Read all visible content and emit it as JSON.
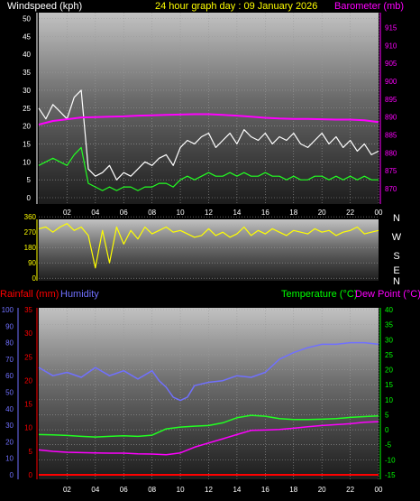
{
  "colors": {
    "wind_label": "#ffffff",
    "title": "#ffff00",
    "barometer": "#ff00ff",
    "rainfall": "#ff0000",
    "humidity": "#7070ff",
    "temperature": "#00ff00",
    "dew_point": "#ff00ff",
    "wind_dir": "#ffff00",
    "rain_ticks": "#ff0000",
    "hum_ticks": "#7070ff"
  },
  "chart_data": [
    {
      "type": "line",
      "title": "24 hour graph day : 09 January 2026",
      "left_label": "Windspeed (kph)",
      "right_label": "Barometer (mb)",
      "x_ticks": [
        "02",
        "04",
        "06",
        "08",
        "10",
        "12",
        "14",
        "16",
        "18",
        "20",
        "22",
        "00"
      ],
      "x_range_hours": [
        0,
        24
      ],
      "y_left": {
        "range": [
          0,
          50
        ],
        "ticks": [
          "0",
          "5",
          "10",
          "15",
          "20",
          "25",
          "30",
          "35",
          "40",
          "45",
          "50"
        ]
      },
      "y_right": {
        "range": [
          867.5,
          917.5
        ],
        "ticks": [
          "870",
          "875",
          "880",
          "885",
          "890",
          "895",
          "900",
          "905",
          "910",
          "915"
        ]
      },
      "series": [
        {
          "key": "gust",
          "color": "#ffffff",
          "x": [
            0,
            0.5,
            1,
            1.5,
            2,
            2.5,
            3,
            3.5,
            4,
            4.5,
            5,
            5.5,
            6,
            6.5,
            7,
            7.5,
            8,
            8.5,
            9,
            9.5,
            10,
            10.5,
            11,
            11.5,
            12,
            12.5,
            13,
            13.5,
            14,
            14.5,
            15,
            15.5,
            16,
            16.5,
            17,
            17.5,
            18,
            18.5,
            19,
            19.5,
            20,
            20.5,
            21,
            21.5,
            22,
            22.5,
            23,
            23.5,
            24
          ],
          "y": [
            25,
            22,
            26,
            24,
            22,
            28,
            30,
            8,
            6,
            7,
            9,
            5,
            7,
            6,
            8,
            10,
            9,
            11,
            12,
            9,
            14,
            16,
            15,
            17,
            18,
            14,
            16,
            18,
            15,
            19,
            17,
            16,
            18,
            15,
            17,
            16,
            18,
            15,
            14,
            16,
            18,
            15,
            17,
            14,
            16,
            13,
            15,
            12,
            13
          ]
        },
        {
          "key": "avg",
          "color": "#22ff22",
          "x": [
            0,
            0.5,
            1,
            1.5,
            2,
            2.5,
            3,
            3.5,
            4,
            4.5,
            5,
            5.5,
            6,
            6.5,
            7,
            7.5,
            8,
            8.5,
            9,
            9.5,
            10,
            10.5,
            11,
            11.5,
            12,
            12.5,
            13,
            13.5,
            14,
            14.5,
            15,
            15.5,
            16,
            16.5,
            17,
            17.5,
            18,
            18.5,
            19,
            19.5,
            20,
            20.5,
            21,
            21.5,
            22,
            22.5,
            23,
            23.5,
            24
          ],
          "y": [
            9,
            10,
            11,
            10,
            9,
            12,
            14,
            4,
            3,
            2,
            3,
            2,
            3,
            3,
            2,
            3,
            3,
            4,
            4,
            3,
            5,
            6,
            5,
            6,
            7,
            6,
            6,
            7,
            6,
            7,
            6,
            6,
            7,
            6,
            6,
            5,
            6,
            5,
            5,
            6,
            6,
            5,
            6,
            5,
            6,
            5,
            6,
            5,
            5
          ]
        },
        {
          "key": "barometer",
          "color": "#ff00ff",
          "axis": "right",
          "x": [
            0,
            1,
            2,
            3,
            4,
            5,
            6,
            7,
            8,
            9,
            10,
            11,
            12,
            13,
            14,
            15,
            16,
            17,
            18,
            19,
            20,
            21,
            22,
            23,
            24
          ],
          "y": [
            887.9,
            888.9,
            889.4,
            889.9,
            890.0,
            890.1,
            890.2,
            890.4,
            890.5,
            890.6,
            890.7,
            890.8,
            890.8,
            890.6,
            890.4,
            890.1,
            889.8,
            889.6,
            889.5,
            889.5,
            889.4,
            889.3,
            889.3,
            889.1,
            888.6
          ]
        }
      ]
    },
    {
      "type": "line",
      "x_range_hours": [
        0,
        24
      ],
      "y_range": [
        -15,
        345
      ],
      "y_ticks": [
        "0",
        "90",
        "180",
        "270",
        "360"
      ],
      "compass_labels": [
        "N",
        "W",
        "S",
        "E",
        "N"
      ],
      "series": [
        {
          "key": "wind_direction",
          "color": "#ffff00",
          "x": [
            0,
            0.5,
            1,
            1.5,
            2,
            2.5,
            3,
            3.5,
            4,
            4.5,
            5,
            5.5,
            6,
            6.5,
            7,
            7.5,
            8,
            8.5,
            9,
            9.5,
            10,
            10.5,
            11,
            11.5,
            12,
            12.5,
            13,
            13.5,
            14,
            14.5,
            15,
            15.5,
            16,
            16.5,
            17,
            17.5,
            18,
            18.5,
            19,
            19.5,
            20,
            20.5,
            21,
            21.5,
            22,
            22.5,
            23,
            23.5,
            24
          ],
          "y": [
            290,
            300,
            270,
            300,
            320,
            280,
            300,
            250,
            60,
            280,
            90,
            300,
            200,
            280,
            230,
            300,
            260,
            280,
            300,
            270,
            280,
            260,
            240,
            250,
            290,
            250,
            270,
            240,
            260,
            300,
            250,
            280,
            260,
            290,
            270,
            250,
            280,
            270,
            260,
            290,
            270,
            280,
            250,
            270,
            280,
            300,
            260,
            270,
            280
          ]
        }
      ]
    },
    {
      "type": "line",
      "left_labels": [
        "Rainfall (mm)",
        "Humidity"
      ],
      "right_labels": [
        "Temperature (°C)",
        "Dew Point (°C)"
      ],
      "x_ticks": [
        "02",
        "04",
        "06",
        "08",
        "10",
        "12",
        "14",
        "16",
        "18",
        "20",
        "22",
        "00"
      ],
      "x_range_hours": [
        0,
        24
      ],
      "rain_axis": {
        "range": [
          0,
          35
        ],
        "ticks": [
          "0",
          "5",
          "10",
          "15",
          "20",
          "25",
          "30",
          "35"
        ]
      },
      "humidity_axis": {
        "range": [
          0,
          100
        ],
        "ticks": [
          "0",
          "10",
          "20",
          "30",
          "40",
          "50",
          "60",
          "70",
          "80",
          "90",
          "100"
        ]
      },
      "temp_axis": {
        "range": [
          -15,
          40
        ],
        "ticks": [
          "-15",
          "-10",
          "-5",
          "0",
          "5",
          "10",
          "15",
          "20",
          "25",
          "30",
          "35",
          "40"
        ]
      },
      "series": [
        {
          "key": "humidity",
          "color": "#7070ff",
          "x": [
            0,
            1,
            2,
            3,
            4,
            5,
            6,
            7,
            8,
            8.5,
            9,
            9.5,
            10,
            10.5,
            11,
            12,
            13,
            14,
            15,
            16,
            17,
            18,
            19,
            20,
            21,
            22,
            23,
            24
          ],
          "y": [
            65,
            60,
            62,
            59,
            65,
            60,
            63,
            58,
            63,
            57,
            53,
            47,
            45,
            47,
            54,
            56,
            57,
            60,
            59,
            62,
            70,
            74,
            77,
            79,
            79,
            80,
            80,
            79
          ]
        },
        {
          "key": "temperature",
          "color": "#22ff22",
          "x": [
            0,
            1,
            2,
            3,
            4,
            5,
            6,
            7,
            8,
            9,
            10,
            11,
            12,
            13,
            14,
            15,
            16,
            17,
            18,
            19,
            20,
            21,
            22,
            23,
            24
          ],
          "y": [
            -1.6,
            -1.7,
            -1.9,
            -2.2,
            -2.4,
            -2.2,
            -2.0,
            -2.2,
            -1.8,
            0.3,
            0.9,
            1.2,
            1.4,
            2.3,
            4.0,
            4.8,
            4.5,
            3.7,
            3.4,
            3.4,
            3.5,
            3.7,
            4.1,
            4.4,
            4.6
          ]
        },
        {
          "key": "dew_point",
          "color": "#ff00ff",
          "x": [
            0,
            1,
            2,
            3,
            4,
            5,
            6,
            7,
            8,
            9,
            10,
            11,
            12,
            13,
            14,
            15,
            16,
            17,
            18,
            19,
            20,
            21,
            22,
            23,
            24
          ],
          "y": [
            -6.7,
            -7.2,
            -7.5,
            -7.6,
            -7.7,
            -7.8,
            -7.8,
            -8.0,
            -8.1,
            -8.3,
            -7.7,
            -5.8,
            -4.4,
            -3.0,
            -1.6,
            -0.2,
            -0.1,
            0.1,
            0.5,
            1.0,
            1.4,
            1.7,
            2.0,
            2.5,
            2.7
          ]
        },
        {
          "key": "rainfall",
          "color": "#ff0000",
          "x": [
            0,
            24
          ],
          "y": [
            0,
            0
          ]
        }
      ]
    }
  ]
}
